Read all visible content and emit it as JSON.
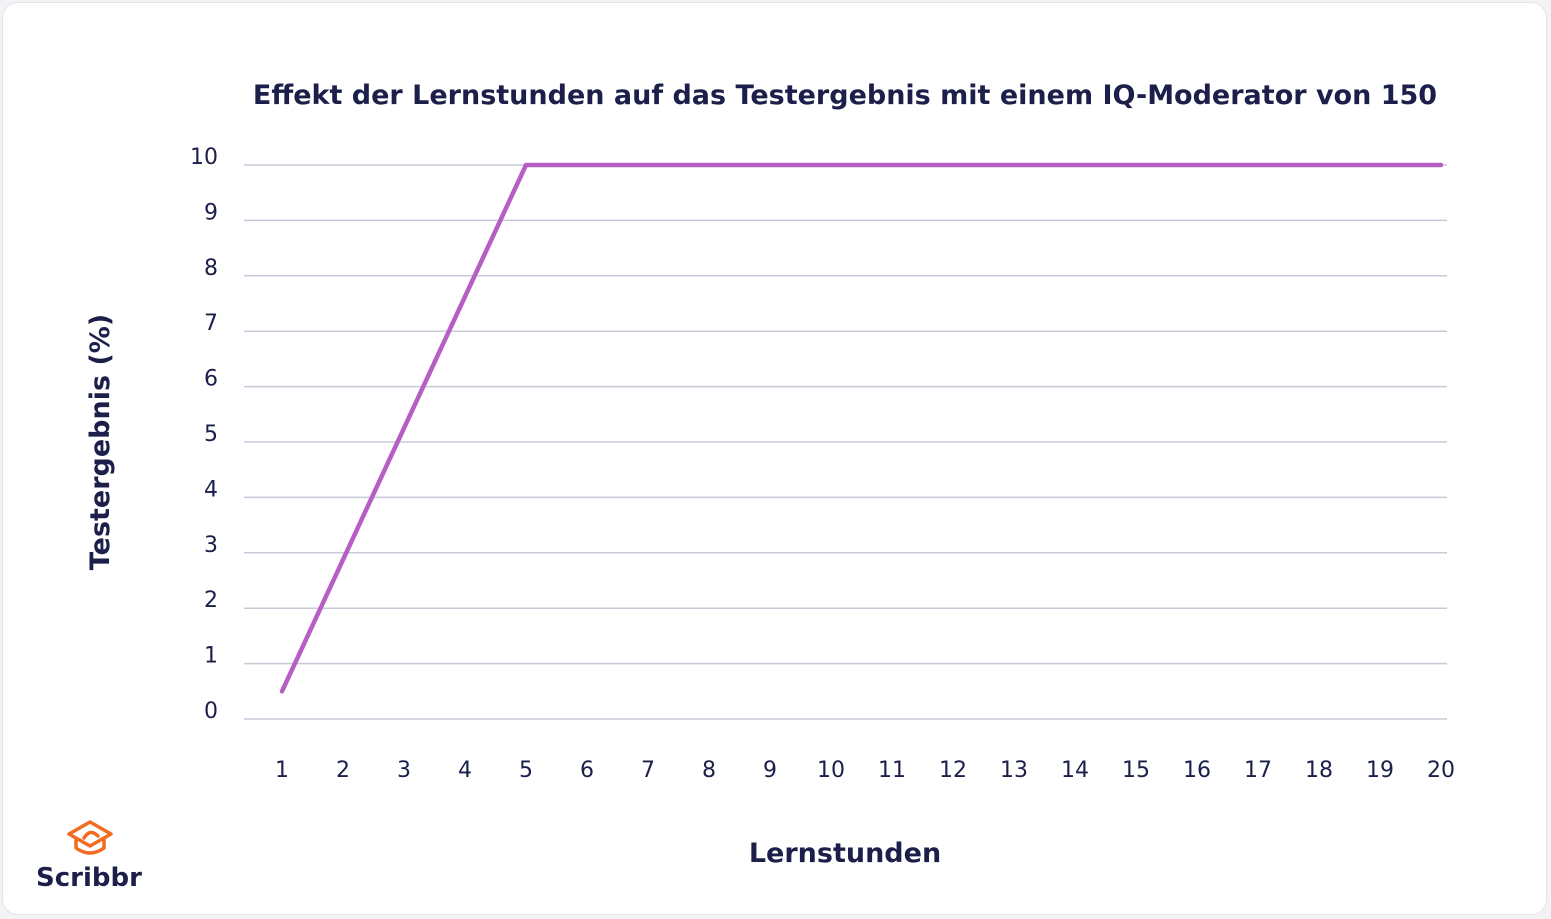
{
  "brand": {
    "name": "Scribbr",
    "logo_icon": "graduation-cap-icon",
    "logo_color": "#f26b21"
  },
  "colors": {
    "text": "#1b1f4a",
    "grid": "#c9cad8",
    "line": "#b65ec3"
  },
  "chart_data": {
    "type": "line",
    "title": "Effekt der Lernstunden auf das Testergebnis mit einem IQ-Moderator von 150",
    "xlabel": "Lernstunden",
    "ylabel": "Testergebnis (%)",
    "x": [
      1,
      5,
      20
    ],
    "series": [
      {
        "values": [
          0.5,
          10,
          10
        ]
      }
    ],
    "xticks": [
      1,
      2,
      3,
      4,
      5,
      6,
      7,
      8,
      9,
      10,
      11,
      12,
      13,
      14,
      15,
      16,
      17,
      18,
      19,
      20
    ],
    "yticks": [
      0,
      1,
      2,
      3,
      4,
      5,
      6,
      7,
      8,
      9,
      10
    ],
    "xlim": [
      1,
      20
    ],
    "ylim": [
      0,
      10
    ],
    "grid": "horizontal"
  }
}
